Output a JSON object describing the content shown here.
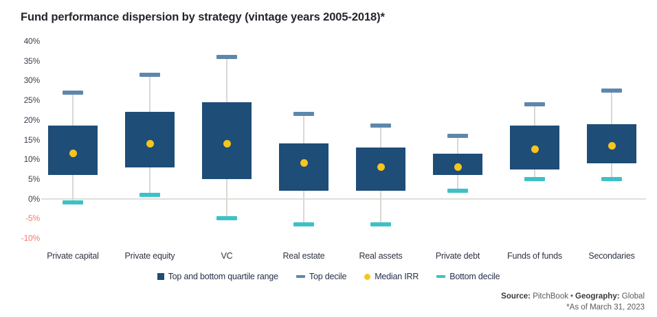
{
  "title": "Fund performance dispersion by strategy (vintage years 2005-2018)*",
  "chart_data": {
    "type": "boxplot",
    "title": "Fund performance dispersion by strategy (vintage years 2005-2018)*",
    "ylim": [
      -10,
      40
    ],
    "y_ticks": [
      40,
      35,
      30,
      25,
      20,
      15,
      10,
      5,
      0,
      -5,
      -10
    ],
    "y_tick_suffix": "%",
    "grid": "zero-line-only",
    "legend_position": "bottom-center",
    "categories": [
      "Private capital",
      "Private equity",
      "VC",
      "Real estate",
      "Real assets",
      "Private debt",
      "Funds of funds",
      "Secondaries"
    ],
    "series": [
      {
        "name": "Top decile",
        "values": [
          27,
          31.5,
          36,
          21.5,
          18.5,
          16,
          24,
          27.5
        ]
      },
      {
        "name": "Top quartile",
        "values": [
          18.5,
          22,
          24.5,
          14,
          13,
          11.5,
          18.5,
          19
        ]
      },
      {
        "name": "Median IRR",
        "values": [
          11.5,
          14,
          14,
          9,
          8,
          8,
          12.5,
          13.5
        ]
      },
      {
        "name": "Bottom quartile",
        "values": [
          6,
          8,
          5,
          2,
          2,
          6,
          7.5,
          9
        ]
      },
      {
        "name": "Bottom decile",
        "values": [
          -1,
          1,
          -5,
          -6.5,
          -6.5,
          2,
          5,
          5
        ]
      }
    ],
    "legend": [
      {
        "label": "Top and bottom quartile range",
        "swatch": "square",
        "color": "#1e4d77"
      },
      {
        "label": "Top decile",
        "swatch": "dash",
        "color": "#5e87ab"
      },
      {
        "label": "Median IRR",
        "swatch": "dot",
        "color": "#f6c51e"
      },
      {
        "label": "Bottom decile",
        "swatch": "dash",
        "color": "#3ec1c6"
      }
    ],
    "colors": {
      "box": "#1e4d77",
      "top_decile": "#5e87ab",
      "bottom_decile": "#3ec1c6",
      "median": "#f6c51e",
      "whisker": "#d8d8d3",
      "zero_line": "#dededa",
      "axis_label": "#383f4e",
      "axis_label_negative": "#f4796b"
    }
  },
  "footer": {
    "source_label": "Source:",
    "source_value": " PitchBook",
    "separator": "•",
    "geography_label": "Geography:",
    "geography_value": " Global",
    "asof": "*As of March 31, 2023"
  }
}
